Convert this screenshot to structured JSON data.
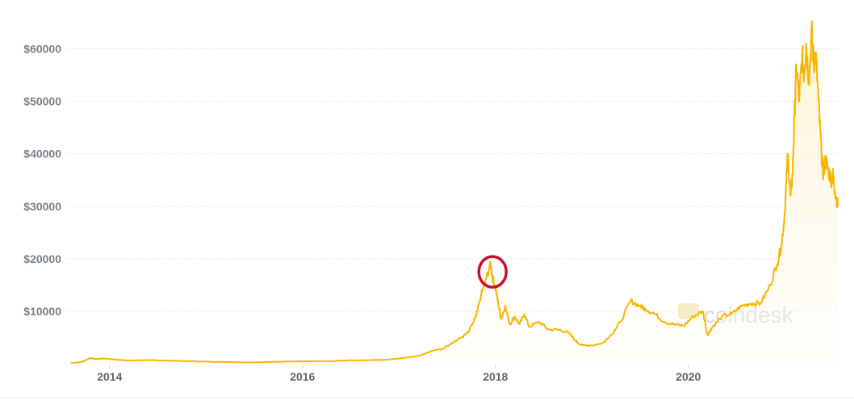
{
  "chart_data": {
    "type": "area",
    "title": "",
    "xlabel": "",
    "ylabel": "",
    "xlim": [
      2013.6,
      2021.55
    ],
    "ylim": [
      0,
      65000
    ],
    "y_ticks": [
      10000,
      20000,
      30000,
      40000,
      50000,
      60000
    ],
    "y_tick_labels": [
      "$10000",
      "$20000",
      "$30000",
      "$40000",
      "$50000",
      "$60000"
    ],
    "x_ticks": [
      2014,
      2016,
      2018,
      2020
    ],
    "x_tick_labels": [
      "2014",
      "2016",
      "2018",
      "2020"
    ],
    "grid": true,
    "line_color": "#f7b500",
    "fill_color": "#fdf3d4",
    "series": [
      {
        "x": [
          2013.6,
          2013.72,
          2013.8,
          2013.86,
          2013.95,
          2014.05,
          2014.2,
          2014.4,
          2014.6,
          2014.8,
          2015.0,
          2015.2,
          2015.5,
          2015.8,
          2016.0,
          2016.3,
          2016.5,
          2016.8,
          2017.0,
          2017.2,
          2017.35,
          2017.45,
          2017.55,
          2017.65,
          2017.72,
          2017.8,
          2017.85,
          2017.9,
          2017.95,
          2017.97,
          2018.0,
          2018.03,
          2018.06,
          2018.1,
          2018.15,
          2018.2,
          2018.25,
          2018.3,
          2018.35,
          2018.45,
          2018.55,
          2018.65,
          2018.75,
          2018.85,
          2018.9,
          2019.0,
          2019.1,
          2019.2,
          2019.3,
          2019.4,
          2019.5,
          2019.55,
          2019.65,
          2019.75,
          2019.85,
          2019.95,
          2020.05,
          2020.15,
          2020.2,
          2020.25,
          2020.35,
          2020.45,
          2020.55,
          2020.65,
          2020.75,
          2020.85,
          2020.92,
          2020.97,
          2021.0,
          2021.03,
          2021.06,
          2021.08,
          2021.1,
          2021.12,
          2021.15,
          2021.18,
          2021.2,
          2021.22,
          2021.25,
          2021.28,
          2021.3,
          2021.32,
          2021.35,
          2021.38,
          2021.4,
          2021.42,
          2021.45,
          2021.48,
          2021.5,
          2021.52,
          2021.55
        ],
        "values": [
          100,
          400,
          1100,
          900,
          1000,
          800,
          600,
          700,
          600,
          500,
          400,
          300,
          250,
          400,
          450,
          500,
          650,
          700,
          1000,
          1500,
          2500,
          2800,
          4000,
          5000,
          6000,
          9000,
          13000,
          16000,
          19000,
          16500,
          14500,
          11500,
          8500,
          11000,
          7500,
          9000,
          7500,
          9500,
          7000,
          8000,
          6500,
          6500,
          6000,
          4000,
          3500,
          3500,
          3800,
          5500,
          8000,
          12000,
          11000,
          10500,
          9500,
          8000,
          7500,
          7200,
          9000,
          10000,
          5500,
          7000,
          9000,
          9500,
          11000,
          11500,
          11500,
          15000,
          19000,
          23000,
          29000,
          40000,
          32000,
          36000,
          47000,
          57000,
          50000,
          59000,
          55000,
          61000,
          54000,
          63500,
          57000,
          59000,
          50000,
          40000,
          36000,
          39000,
          37000,
          35000,
          36000,
          33000,
          30000
        ]
      }
    ],
    "annotations": [
      {
        "type": "circle",
        "x": 2017.97,
        "y": 17500,
        "color": "#c8102e"
      }
    ],
    "watermark": "coindesk"
  }
}
